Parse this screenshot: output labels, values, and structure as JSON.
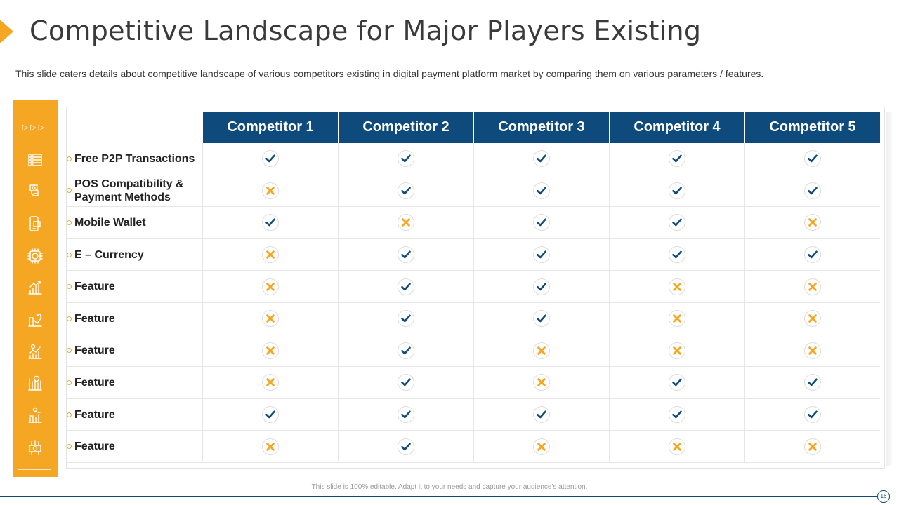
{
  "title": "Competitive Landscape for Major Players Existing",
  "subtitle": "This slide caters details about competitive landscape of various competitors existing in digital payment platform market by comparing them on various parameters / features.",
  "side_bar": {
    "arrows": "▷▷▷",
    "icons": [
      "server-icon",
      "hand-money-icon",
      "mobile-wallet-icon",
      "dollar-chip-icon",
      "money-growth-icon",
      "money-hand-icon",
      "bar-chart-icon",
      "dollar-chart-icon",
      "money-people-icon",
      "money-network-icon"
    ]
  },
  "table": {
    "headers": [
      "Competitor 1",
      "Competitor 2",
      "Competitor 3",
      "Competitor 4",
      "Competitor 5"
    ],
    "rows": [
      {
        "feature": "Free P2P Transactions",
        "values": [
          true,
          true,
          true,
          true,
          true
        ]
      },
      {
        "feature": "POS Compatibility & Payment Methods",
        "values": [
          false,
          true,
          true,
          true,
          true
        ]
      },
      {
        "feature": "Mobile Wallet",
        "values": [
          true,
          false,
          true,
          true,
          false
        ]
      },
      {
        "feature": "E – Currency",
        "values": [
          false,
          true,
          true,
          true,
          true
        ]
      },
      {
        "feature": "Feature",
        "values": [
          false,
          true,
          true,
          false,
          false
        ]
      },
      {
        "feature": "Feature",
        "values": [
          false,
          true,
          true,
          false,
          false
        ]
      },
      {
        "feature": "Feature",
        "values": [
          false,
          true,
          false,
          false,
          false
        ]
      },
      {
        "feature": "Feature",
        "values": [
          false,
          true,
          false,
          true,
          true
        ]
      },
      {
        "feature": "Feature",
        "values": [
          true,
          true,
          true,
          true,
          true
        ]
      },
      {
        "feature": "Feature",
        "values": [
          false,
          true,
          false,
          false,
          false
        ]
      }
    ]
  },
  "colors": {
    "accent": "#f5a623",
    "header": "#0e4a7c",
    "check": "#0e4a7c",
    "cross": "#f5a623"
  },
  "footer": "This slide is 100% editable. Adapt it to your needs and capture your audience’s attention.",
  "page_number": "16"
}
